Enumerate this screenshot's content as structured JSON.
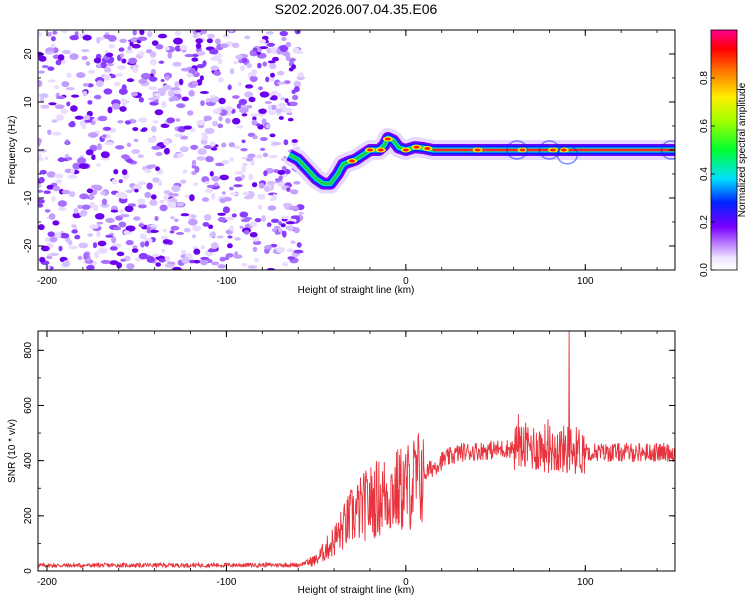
{
  "title": "S202.2026.007.04.35.E06",
  "chart_data": [
    {
      "type": "heatmap",
      "name": "spectrogram",
      "xlabel": "Height of straight line (km)",
      "ylabel": "Frequency (Hz)",
      "xlim": [
        -205,
        150
      ],
      "ylim": [
        -25,
        25
      ],
      "xticks": [
        -200,
        -100,
        0,
        100
      ],
      "yticks": [
        -20,
        -10,
        0,
        10,
        20
      ],
      "noise_region_x": [
        -205,
        -58
      ],
      "track": [
        {
          "x": -65,
          "y": -1
        },
        {
          "x": -60,
          "y": -2
        },
        {
          "x": -55,
          "y": -4
        },
        {
          "x": -50,
          "y": -6
        },
        {
          "x": -46,
          "y": -7
        },
        {
          "x": -42,
          "y": -7
        },
        {
          "x": -38,
          "y": -5
        },
        {
          "x": -35,
          "y": -3
        },
        {
          "x": -32,
          "y": -2.5
        },
        {
          "x": -28,
          "y": -2
        },
        {
          "x": -24,
          "y": -1
        },
        {
          "x": -20,
          "y": 0
        },
        {
          "x": -15,
          "y": 0
        },
        {
          "x": -12,
          "y": 1
        },
        {
          "x": -10,
          "y": 2.5
        },
        {
          "x": -7,
          "y": 2
        },
        {
          "x": -4,
          "y": 0.5
        },
        {
          "x": 0,
          "y": 0
        },
        {
          "x": 5,
          "y": 0.6
        },
        {
          "x": 10,
          "y": 0.4
        },
        {
          "x": 15,
          "y": 0
        },
        {
          "x": 150,
          "y": 0
        }
      ],
      "colorbar": {
        "label": "Normalized spectral amplitude",
        "range": [
          0,
          1
        ],
        "ticks": [
          "0.0",
          "0.2",
          "0.4",
          "0.6",
          "0.8"
        ],
        "tick_values": [
          0.0,
          0.2,
          0.4,
          0.6,
          0.8
        ]
      }
    },
    {
      "type": "line",
      "name": "snr",
      "xlabel": "Height of straight line (km)",
      "ylabel": "SNR (10 * v/v)",
      "xlim": [
        -205,
        150
      ],
      "ylim": [
        0,
        870
      ],
      "xticks": [
        -200,
        -100,
        0,
        100
      ],
      "yticks": [
        0,
        200,
        400,
        600,
        800
      ],
      "color": "#e8323c",
      "envelope": [
        {
          "x": -205,
          "y": 20
        },
        {
          "x": -60,
          "y": 22
        },
        {
          "x": -50,
          "y": 40
        },
        {
          "x": -40,
          "y": 110
        },
        {
          "x": -30,
          "y": 200
        },
        {
          "x": -20,
          "y": 250
        },
        {
          "x": -10,
          "y": 280
        },
        {
          "x": 0,
          "y": 300
        },
        {
          "x": 10,
          "y": 350
        },
        {
          "x": 20,
          "y": 400
        },
        {
          "x": 30,
          "y": 430
        },
        {
          "x": 50,
          "y": 440
        },
        {
          "x": 70,
          "y": 450
        },
        {
          "x": 90,
          "y": 440
        },
        {
          "x": 110,
          "y": 430
        },
        {
          "x": 150,
          "y": 430
        }
      ],
      "peak": {
        "x": 91,
        "y": 870
      }
    }
  ]
}
